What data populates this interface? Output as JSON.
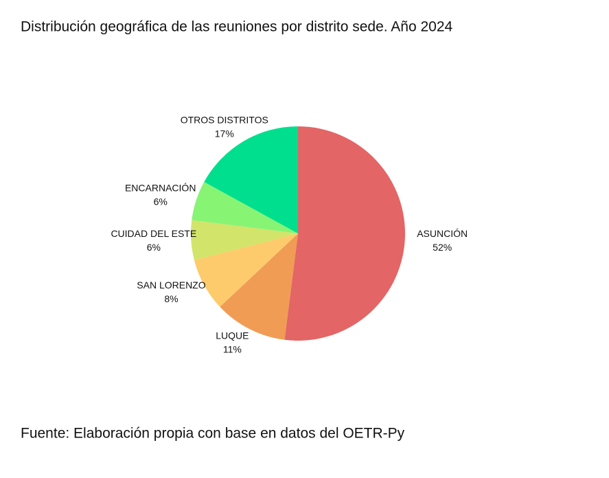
{
  "chart_data": {
    "type": "pie",
    "title": "Distribución geográfica de las reuniones por distrito sede. Año 2024",
    "categories": [
      "ASUNCIÓN",
      "LUQUE",
      "SAN LORENZO",
      "CUIDAD DEL ESTE",
      "ENCARNACIÓN",
      "OTROS DISTRITOS"
    ],
    "values": [
      52,
      11,
      8,
      6,
      6,
      17
    ],
    "value_labels": [
      "52%",
      "11%",
      "8%",
      "6%",
      "6%",
      "17%"
    ],
    "colors": [
      "#e36565",
      "#f09c54",
      "#fdcb6c",
      "#d3e46a",
      "#87f474",
      "#00df8e"
    ],
    "source": "Fuente: Elaboración propia con base en datos del OETR-Py"
  }
}
